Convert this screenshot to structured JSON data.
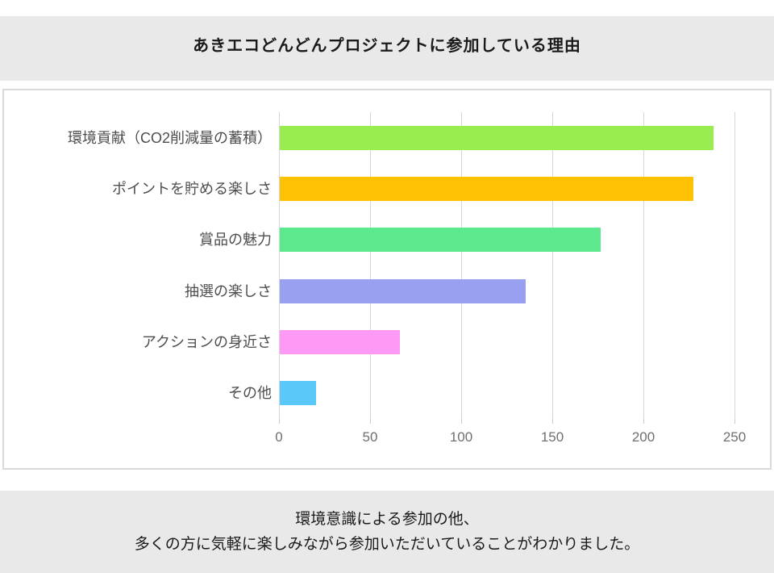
{
  "title_band": {
    "title": "あきエコどんどんプロジェクトに参加している理由"
  },
  "chart_data": {
    "type": "bar",
    "orientation": "horizontal",
    "title": "あきエコどんどんプロジェクトに参加している理由",
    "categories": [
      "環境貢献（CO2削減量の蓄積）",
      "ポイントを貯める楽しさ",
      "賞品の魅力",
      "抽選の楽しさ",
      "アクションの身近さ",
      "その他"
    ],
    "values": [
      238,
      227,
      176,
      135,
      66,
      20
    ],
    "bar_colors": [
      "#9aed4e",
      "#fec103",
      "#5ce98d",
      "#9aa0f0",
      "#fe9af5",
      "#5bc8fa"
    ],
    "x_ticks": [
      0,
      50,
      100,
      150,
      200,
      250
    ],
    "xlim": [
      0,
      263
    ],
    "xlabel": "",
    "ylabel": "",
    "grid": true,
    "legend": false
  },
  "footer_band": {
    "line1": "環境意識による参加の他、",
    "line2": "多くの方に気軽に楽しみながら参加いただいていることがわかりました。"
  },
  "theme": {
    "band_bg": "#e9e9e9",
    "panel_border": "#d9d9d9",
    "gridline_color": "#d6d6d6",
    "tick_label_color": "#6f6f6f",
    "category_label_color": "#4d4d4d",
    "text_color": "#1a1a1a"
  }
}
